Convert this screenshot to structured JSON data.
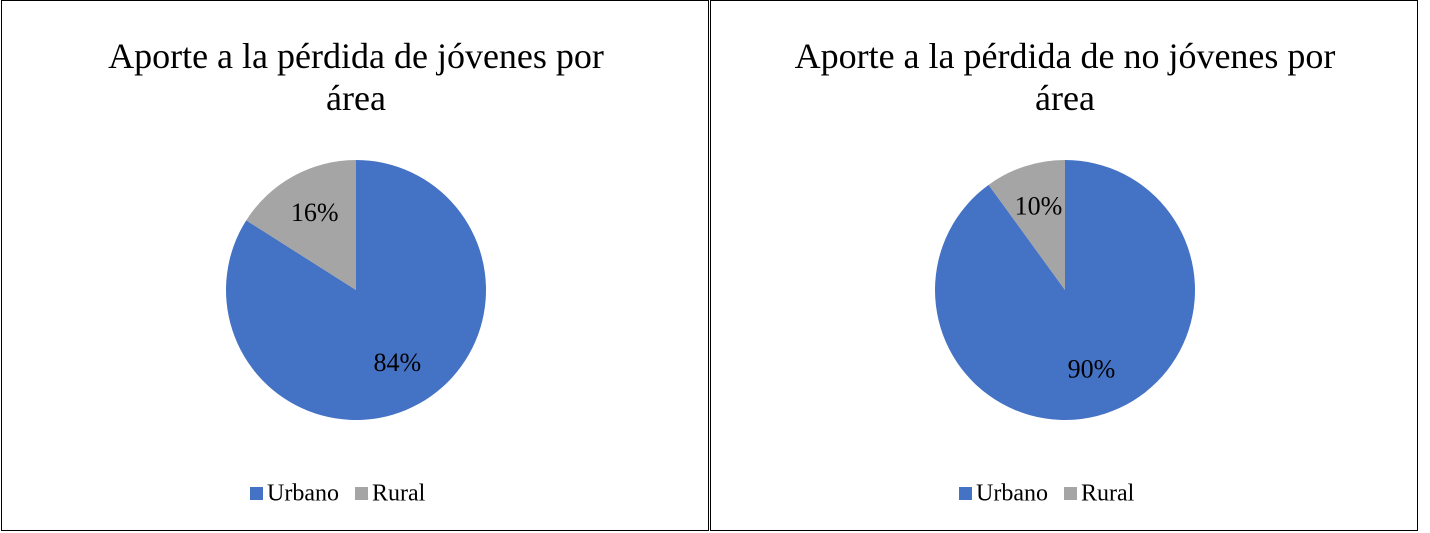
{
  "chart_data": [
    {
      "type": "pie",
      "title": "Aporte a la pérdida de jóvenes por área",
      "categories": [
        "Urbano",
        "Rural"
      ],
      "values": [
        84,
        16
      ],
      "value_labels": [
        "84%",
        "16%"
      ],
      "colors": [
        "#4472c4",
        "#a5a5a5"
      ],
      "legend": "bottom"
    },
    {
      "type": "pie",
      "title": "Aporte a la pérdida de no jóvenes por área",
      "categories": [
        "Urbano",
        "Rural"
      ],
      "values": [
        90,
        10
      ],
      "value_labels": [
        "90%",
        "10%"
      ],
      "colors": [
        "#4472c4",
        "#a5a5a5"
      ],
      "legend": "bottom"
    }
  ]
}
